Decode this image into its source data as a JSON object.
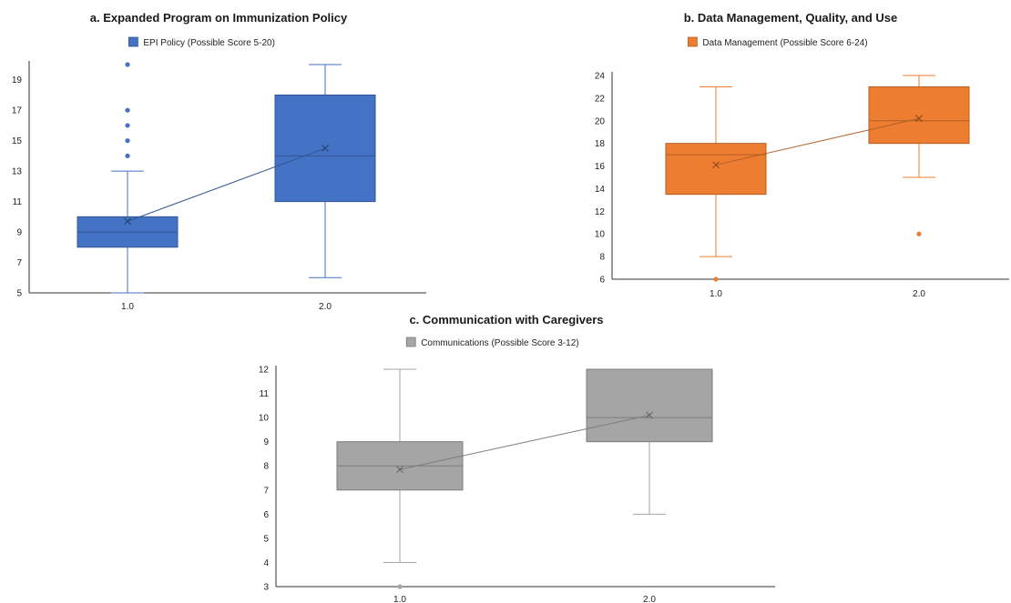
{
  "chart_data": [
    {
      "type": "box",
      "title": "a. Expanded Program on Immunization Policy",
      "legend": "EPI Policy (Possible Score 5-20)",
      "color": "#4472C4",
      "ylim": [
        5,
        20
      ],
      "yticks": [
        5,
        7,
        9,
        11,
        13,
        15,
        17,
        19
      ],
      "categories": [
        "1.0",
        "2.0"
      ],
      "boxes": [
        {
          "category": "1.0",
          "min": 5,
          "q1": 8,
          "median": 9,
          "q3": 10,
          "max": 13,
          "mean": 9.7,
          "outliers": [
            14,
            15,
            16,
            17,
            20
          ]
        },
        {
          "category": "2.0",
          "min": 6,
          "q1": 11,
          "median": 14,
          "q3": 18,
          "max": 20,
          "mean": 14.5,
          "outliers": []
        }
      ]
    },
    {
      "type": "box",
      "title": "b. Data Management, Quality, and Use",
      "legend": "Data Management (Possible Score 6-24)",
      "color": "#ED7D31",
      "ylim": [
        6,
        24
      ],
      "yticks": [
        6,
        8,
        10,
        12,
        14,
        16,
        18,
        20,
        22,
        24
      ],
      "categories": [
        "1.0",
        "2.0"
      ],
      "boxes": [
        {
          "category": "1.0",
          "min": 8,
          "q1": 13.5,
          "median": 17,
          "q3": 18,
          "max": 23,
          "mean": 16.1,
          "outliers": [
            6
          ]
        },
        {
          "category": "2.0",
          "min": 15,
          "q1": 18,
          "median": 20,
          "q3": 23,
          "max": 24,
          "mean": 20.2,
          "outliers": [
            10
          ]
        }
      ]
    },
    {
      "type": "box",
      "title": "c. Communication with Caregivers",
      "legend": "Communications (Possible Score 3-12)",
      "color": "#A5A5A5",
      "ylim": [
        3,
        12
      ],
      "yticks": [
        3,
        4,
        5,
        6,
        7,
        8,
        9,
        10,
        11,
        12
      ],
      "categories": [
        "1.0",
        "2.0"
      ],
      "boxes": [
        {
          "category": "1.0",
          "min": 4,
          "q1": 7,
          "median": 8,
          "q3": 9,
          "max": 12,
          "mean": 7.85,
          "outliers": [
            3
          ]
        },
        {
          "category": "2.0",
          "min": 6,
          "q1": 9,
          "median": 10,
          "q3": 12,
          "max": 12,
          "mean": 10.1,
          "outliers": []
        }
      ]
    }
  ]
}
